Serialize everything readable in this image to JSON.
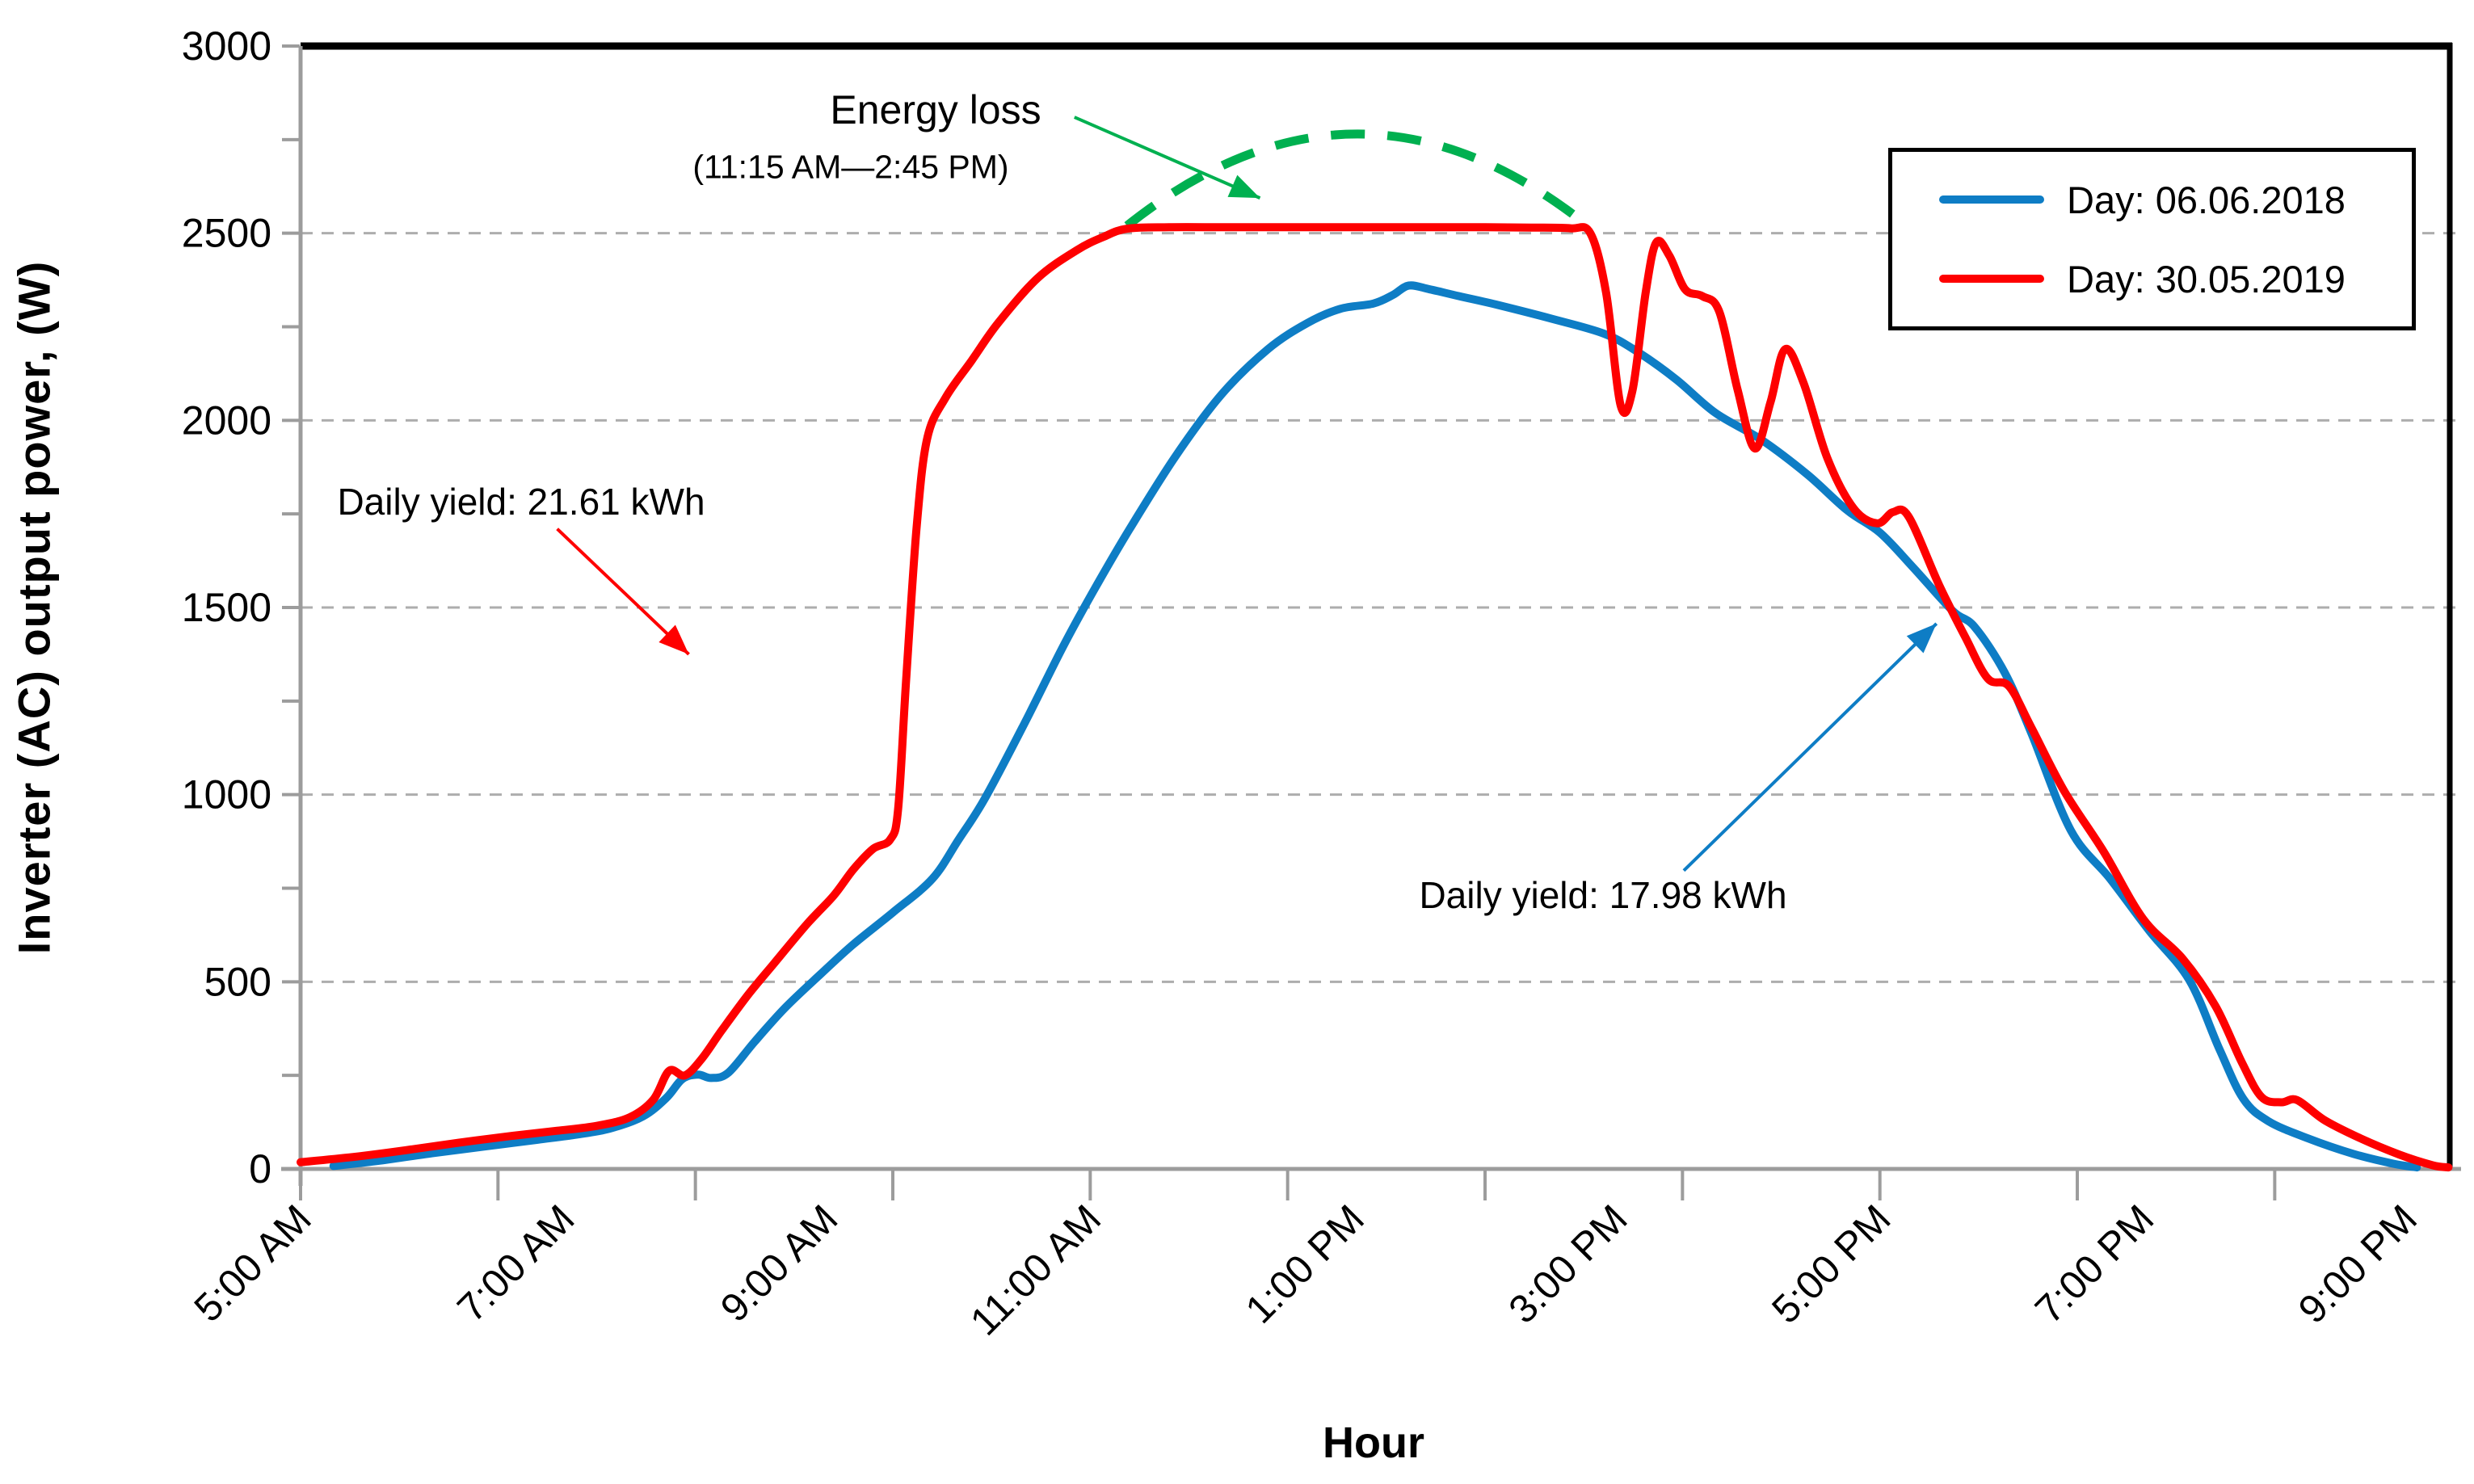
{
  "chart_data": {
    "type": "line",
    "title": "",
    "xlabel": "Hour",
    "ylabel": "Inverter (AC) output power, (W)",
    "x_axis": {
      "unit": "hours",
      "range": [
        5.0,
        21.33
      ],
      "minor_tick_interval_hours": 1.5,
      "label_interval_hours": 2,
      "label_hours": [
        5,
        7,
        9,
        11,
        13,
        15,
        17,
        19,
        21
      ],
      "tick_labels": [
        "5:00 AM",
        "7:00 AM",
        "9:00 AM",
        "11:00 AM",
        "1:00 PM",
        "3:00 PM",
        "5:00 PM",
        "7:00 PM",
        "9:00 PM"
      ],
      "label_rotation_deg": -45
    },
    "y_axis": {
      "range": [
        0,
        3000
      ],
      "major_tick": 500,
      "minor_tick": 250,
      "tick_labels": [
        "0",
        "500",
        "1000",
        "1500",
        "2000",
        "2500",
        "3000"
      ]
    },
    "grid": {
      "horizontal_dashed_at": [
        500,
        1000,
        1500,
        2000,
        2500
      ]
    },
    "legend": {
      "position": "top-right",
      "entries": [
        {
          "label": "Day: 06.06.2018",
          "color": "#0E7DC5"
        },
        {
          "label": "Day: 30.05.2019",
          "color": "#FE0000"
        }
      ]
    },
    "series": [
      {
        "name": "Day: 06.06.2018",
        "color": "#0E7DC5",
        "daily_yield_kwh": 17.98,
        "points": [
          [
            5.25,
            8
          ],
          [
            5.6,
            22
          ],
          [
            6.0,
            42
          ],
          [
            6.4,
            60
          ],
          [
            6.8,
            78
          ],
          [
            7.1,
            92
          ],
          [
            7.35,
            108
          ],
          [
            7.6,
            140
          ],
          [
            7.78,
            190
          ],
          [
            7.9,
            240
          ],
          [
            8.02,
            252
          ],
          [
            8.12,
            243
          ],
          [
            8.25,
            257
          ],
          [
            8.45,
            340
          ],
          [
            8.68,
            430
          ],
          [
            8.95,
            520
          ],
          [
            9.2,
            600
          ],
          [
            9.5,
            685
          ],
          [
            9.8,
            775
          ],
          [
            10.0,
            880
          ],
          [
            10.2,
            990
          ],
          [
            10.5,
            1190
          ],
          [
            10.8,
            1400
          ],
          [
            11.05,
            1560
          ],
          [
            11.3,
            1710
          ],
          [
            11.65,
            1905
          ],
          [
            12.0,
            2070
          ],
          [
            12.35,
            2190
          ],
          [
            12.65,
            2260
          ],
          [
            12.9,
            2298
          ],
          [
            13.15,
            2312
          ],
          [
            13.3,
            2335
          ],
          [
            13.42,
            2360
          ],
          [
            13.58,
            2350
          ],
          [
            13.8,
            2332
          ],
          [
            14.1,
            2308
          ],
          [
            14.5,
            2272
          ],
          [
            14.9,
            2232
          ],
          [
            15.15,
            2185
          ],
          [
            15.45,
            2110
          ],
          [
            15.75,
            2020
          ],
          [
            16.1,
            1948
          ],
          [
            16.45,
            1855
          ],
          [
            16.75,
            1760
          ],
          [
            17.0,
            1700
          ],
          [
            17.25,
            1608
          ],
          [
            17.55,
            1492
          ],
          [
            17.72,
            1448
          ],
          [
            17.95,
            1325
          ],
          [
            18.15,
            1165
          ],
          [
            18.45,
            905
          ],
          [
            18.75,
            775
          ],
          [
            19.05,
            635
          ],
          [
            19.35,
            505
          ],
          [
            19.58,
            320
          ],
          [
            19.76,
            188
          ],
          [
            19.95,
            128
          ],
          [
            20.25,
            82
          ],
          [
            20.6,
            40
          ],
          [
            20.9,
            14
          ],
          [
            21.08,
            4
          ]
        ]
      },
      {
        "name": "Day: 30.05.2019",
        "color": "#FE0000",
        "daily_yield_kwh": 21.61,
        "points": [
          [
            5.0,
            18
          ],
          [
            5.4,
            32
          ],
          [
            5.8,
            50
          ],
          [
            6.2,
            70
          ],
          [
            6.6,
            88
          ],
          [
            6.95,
            102
          ],
          [
            7.25,
            115
          ],
          [
            7.5,
            138
          ],
          [
            7.68,
            185
          ],
          [
            7.8,
            262
          ],
          [
            7.92,
            250
          ],
          [
            8.05,
            295
          ],
          [
            8.2,
            370
          ],
          [
            8.4,
            465
          ],
          [
            8.6,
            550
          ],
          [
            8.85,
            655
          ],
          [
            9.05,
            730
          ],
          [
            9.2,
            800
          ],
          [
            9.35,
            855
          ],
          [
            9.48,
            880
          ],
          [
            9.54,
            960
          ],
          [
            9.6,
            1300
          ],
          [
            9.68,
            1710
          ],
          [
            9.76,
            1950
          ],
          [
            9.9,
            2060
          ],
          [
            10.1,
            2160
          ],
          [
            10.3,
            2260
          ],
          [
            10.6,
            2380
          ],
          [
            10.9,
            2455
          ],
          [
            11.1,
            2490
          ],
          [
            11.28,
            2512
          ],
          [
            11.6,
            2516
          ],
          [
            12.0,
            2516
          ],
          [
            12.4,
            2516
          ],
          [
            12.8,
            2516
          ],
          [
            13.2,
            2516
          ],
          [
            13.6,
            2516
          ],
          [
            14.0,
            2516
          ],
          [
            14.35,
            2515
          ],
          [
            14.65,
            2513
          ],
          [
            14.8,
            2500
          ],
          [
            14.92,
            2340
          ],
          [
            15.03,
            2040
          ],
          [
            15.12,
            2080
          ],
          [
            15.22,
            2340
          ],
          [
            15.3,
            2475
          ],
          [
            15.4,
            2440
          ],
          [
            15.52,
            2350
          ],
          [
            15.65,
            2332
          ],
          [
            15.78,
            2290
          ],
          [
            15.92,
            2080
          ],
          [
            16.05,
            1925
          ],
          [
            16.17,
            2050
          ],
          [
            16.28,
            2190
          ],
          [
            16.42,
            2100
          ],
          [
            16.6,
            1900
          ],
          [
            16.8,
            1765
          ],
          [
            16.98,
            1725
          ],
          [
            17.1,
            1755
          ],
          [
            17.22,
            1742
          ],
          [
            17.45,
            1560
          ],
          [
            17.65,
            1420
          ],
          [
            17.82,
            1310
          ],
          [
            17.98,
            1290
          ],
          [
            18.15,
            1180
          ],
          [
            18.4,
            1010
          ],
          [
            18.7,
            848
          ],
          [
            19.0,
            668
          ],
          [
            19.3,
            562
          ],
          [
            19.55,
            435
          ],
          [
            19.75,
            285
          ],
          [
            19.9,
            192
          ],
          [
            20.05,
            178
          ],
          [
            20.17,
            184
          ],
          [
            20.38,
            130
          ],
          [
            20.65,
            82
          ],
          [
            20.95,
            38
          ],
          [
            21.2,
            10
          ],
          [
            21.32,
            4
          ]
        ]
      }
    ],
    "annotations": {
      "energy_loss": {
        "line1": "Energy loss",
        "line2": "(11:15 AM—2:45 PM)",
        "color": "#00B050",
        "arc": {
          "start": [
            11.28,
            2520
          ],
          "end": [
            14.78,
            2520
          ],
          "control": [
            13.03,
            3010
          ],
          "style": "dashed"
        },
        "arrow": {
          "from": [
            10.88,
            2810
          ],
          "to": [
            12.29,
            2594
          ]
        }
      },
      "yield_red": {
        "text": "Daily yield: 21.61 kWh",
        "color": "#FE0000",
        "arrow": {
          "from": [
            6.95,
            1710
          ],
          "to": [
            7.95,
            1375
          ]
        }
      },
      "yield_blue": {
        "text": "Daily yield: 17.98 kWh",
        "color": "#0E7DC5",
        "arrow": {
          "from": [
            15.51,
            797
          ],
          "to": [
            17.43,
            1457
          ]
        }
      }
    }
  }
}
